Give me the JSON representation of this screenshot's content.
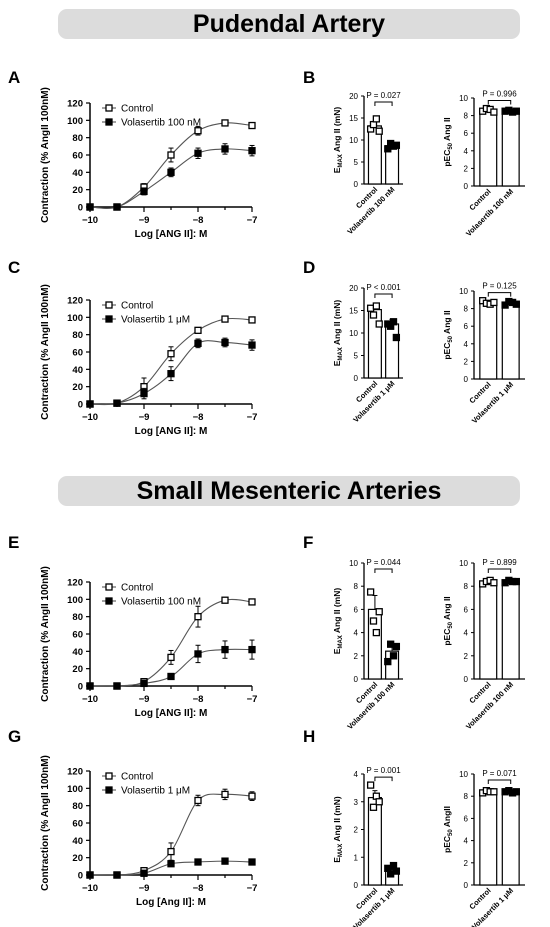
{
  "sections": [
    {
      "title": "Pudendal Artery"
    },
    {
      "title": "Small Mesenteric Arteries"
    }
  ],
  "chart_data": [
    {
      "panel": "A",
      "type": "line",
      "xlabel": "Log [ANG II]: M",
      "ylabel": "Contraction (% AngII 100nM)",
      "xlim": [
        -10,
        -7
      ],
      "ylim": [
        0,
        120
      ],
      "xticks": [
        -10,
        -9,
        -8,
        -7
      ],
      "xtick_labels": [
        "−10",
        "−9",
        "−8",
        "−7"
      ],
      "yticks": [
        0,
        20,
        40,
        60,
        80,
        100,
        120
      ],
      "x": [
        -10,
        -9.5,
        -9,
        -8.5,
        -8,
        -7.5,
        -7
      ],
      "series": [
        {
          "name": "Control",
          "marker": "open-square",
          "values": [
            0,
            0,
            23,
            60,
            88,
            97,
            94
          ],
          "errors": [
            1,
            1,
            4,
            8,
            5,
            2,
            3
          ]
        },
        {
          "name": "Volasertib 100 nM",
          "marker": "filled-square",
          "values": [
            0,
            0,
            18,
            40,
            62,
            67,
            65
          ],
          "errors": [
            1,
            1,
            4,
            5,
            6,
            6,
            6
          ]
        }
      ]
    },
    {
      "panel": "C",
      "type": "line",
      "xlabel": "Log [ANG II]: M",
      "ylabel": "Contraction (% AngII 100nM)",
      "xlim": [
        -10,
        -7
      ],
      "ylim": [
        0,
        120
      ],
      "xticks": [
        -10,
        -9,
        -8,
        -7
      ],
      "xtick_labels": [
        "−10",
        "−9",
        "−8",
        "−7"
      ],
      "yticks": [
        0,
        20,
        40,
        60,
        80,
        100,
        120
      ],
      "x": [
        -10,
        -9.5,
        -9,
        -8.5,
        -8,
        -7.5,
        -7
      ],
      "series": [
        {
          "name": "Control",
          "marker": "open-square",
          "values": [
            0,
            1,
            20,
            58,
            85,
            98,
            97
          ],
          "errors": [
            1,
            1,
            10,
            8,
            3,
            2,
            2
          ]
        },
        {
          "name": "Volasertib 1 μM",
          "marker": "filled-square",
          "values": [
            0,
            1,
            12,
            35,
            70,
            71,
            68
          ],
          "errors": [
            1,
            1,
            6,
            8,
            5,
            5,
            6
          ]
        }
      ]
    },
    {
      "panel": "E",
      "type": "line",
      "xlabel": "Log [ANG II]: M",
      "ylabel": "Contraction (% AngII 100nM)",
      "xlim": [
        -10,
        -7
      ],
      "ylim": [
        0,
        120
      ],
      "xticks": [
        -10,
        -9,
        -8,
        -7
      ],
      "xtick_labels": [
        "−10",
        "−9",
        "−8",
        "−7"
      ],
      "yticks": [
        0,
        20,
        40,
        60,
        80,
        100,
        120
      ],
      "x": [
        -10,
        -9.5,
        -9,
        -8.5,
        -8,
        -7.5,
        -7
      ],
      "series": [
        {
          "name": "Control",
          "marker": "open-square",
          "values": [
            0,
            0,
            5,
            33,
            80,
            99,
            97
          ],
          "errors": [
            1,
            1,
            3,
            8,
            12,
            2,
            2
          ]
        },
        {
          "name": "Volasertib 100 nM",
          "marker": "filled-square",
          "values": [
            0,
            0,
            3,
            11,
            37,
            42,
            42
          ],
          "errors": [
            1,
            1,
            2,
            3,
            10,
            10,
            11
          ]
        }
      ]
    },
    {
      "panel": "G",
      "type": "line",
      "xlabel": "Log [Ang II]: M",
      "ylabel": "Contraction (% AngII 100nM)",
      "xlim": [
        -10,
        -7
      ],
      "ylim": [
        0,
        120
      ],
      "xticks": [
        -10,
        -9,
        -8,
        -7
      ],
      "xtick_labels": [
        "−10",
        "−9",
        "−8",
        "−7"
      ],
      "yticks": [
        0,
        20,
        40,
        60,
        80,
        100,
        120
      ],
      "x": [
        -10,
        -9.5,
        -9,
        -8.5,
        -8,
        -7.5,
        -7
      ],
      "series": [
        {
          "name": "Control",
          "marker": "open-square",
          "values": [
            0,
            0,
            5,
            27,
            86,
            93,
            91
          ],
          "errors": [
            1,
            1,
            2,
            10,
            6,
            6,
            5
          ]
        },
        {
          "name": "Volasertib 1 μM",
          "marker": "filled-square",
          "values": [
            0,
            0,
            2,
            13,
            15,
            16,
            15
          ],
          "errors": [
            1,
            1,
            1,
            2,
            2,
            2,
            2
          ]
        }
      ]
    },
    {
      "panel": "B",
      "type": "bar",
      "ylabel": "EMAX Ang II (mN)",
      "ylabel_main": "E",
      "ylabel_sub": "MAX",
      "ylabel_rest": " Ang II (mN)",
      "ylim": [
        0,
        20
      ],
      "yticks": [
        0,
        5,
        10,
        15,
        20
      ],
      "categories": [
        "Control",
        "Volasertib 100 nM"
      ],
      "values": [
        13.2,
        8.7
      ],
      "errors": [
        1.0,
        0.6
      ],
      "points": [
        [
          12.5,
          13.5,
          14.8,
          12.0
        ],
        [
          8.0,
          9.2,
          8.6,
          8.8
        ]
      ],
      "p_value": "P = 0.027"
    },
    {
      "panel": "B",
      "type": "bar",
      "ylabel": "pEC50 Ang II",
      "ylabel_main": "pEC",
      "ylabel_sub": "50",
      "ylabel_rest": " Ang II",
      "ylim": [
        0,
        10
      ],
      "yticks": [
        0,
        2,
        4,
        6,
        8,
        10
      ],
      "categories": [
        "Control",
        "Volasertib 100 nM"
      ],
      "values": [
        8.6,
        8.5
      ],
      "errors": [
        0.2,
        0.1
      ],
      "points": [
        [
          8.5,
          8.8,
          8.7,
          8.4
        ],
        [
          8.5,
          8.6,
          8.4,
          8.5
        ]
      ],
      "p_value": "P = 0.996"
    },
    {
      "panel": "D",
      "type": "bar",
      "ylabel": "EMAX Ang II (mN)",
      "ylabel_main": "E",
      "ylabel_sub": "MAX",
      "ylabel_rest": " Ang II (mN)",
      "ylim": [
        0,
        20
      ],
      "yticks": [
        0,
        5,
        10,
        15,
        20
      ],
      "categories": [
        "Control",
        "Volasertib 1 μM"
      ],
      "values": [
        15.2,
        12.0
      ],
      "errors": [
        0.8,
        1.0
      ],
      "points": [
        [
          15.5,
          14.0,
          16.0,
          12.0
        ],
        [
          12.0,
          11.5,
          12.5,
          9.0
        ]
      ],
      "p_value": "P < 0.001"
    },
    {
      "panel": "D",
      "type": "bar",
      "ylabel": "pEC50 Ang II",
      "ylabel_main": "pEC",
      "ylabel_sub": "50",
      "ylabel_rest": " Ang II",
      "ylim": [
        0,
        10
      ],
      "yticks": [
        0,
        2,
        4,
        6,
        8,
        10
      ],
      "categories": [
        "Control",
        "Volasertib 1 μM"
      ],
      "values": [
        8.7,
        8.6
      ],
      "errors": [
        0.2,
        0.2
      ],
      "points": [
        [
          8.9,
          8.6,
          8.5,
          8.7
        ],
        [
          8.4,
          8.8,
          8.7,
          8.5
        ]
      ],
      "p_value": "P = 0.125"
    },
    {
      "panel": "F",
      "type": "bar",
      "ylabel": "EMAX Ang II (mN)",
      "ylabel_main": "E",
      "ylabel_sub": "MAX",
      "ylabel_rest": " Ang II (mN)",
      "ylim": [
        0,
        10
      ],
      "yticks": [
        0,
        2,
        4,
        6,
        8,
        10
      ],
      "categories": [
        "Control",
        "Volasertib 100 nM"
      ],
      "values": [
        6.0,
        2.4
      ],
      "errors": [
        1.2,
        0.6
      ],
      "points": [
        [
          7.5,
          5.0,
          4.0,
          5.8
        ],
        [
          1.5,
          3.0,
          2.0,
          2.8
        ]
      ],
      "p_value": "P = 0.044"
    },
    {
      "panel": "F",
      "type": "bar",
      "ylabel": "pEC50 Ang II",
      "ylabel_main": "pEC",
      "ylabel_sub": "50",
      "ylabel_rest": " Ang II",
      "ylim": [
        0,
        10
      ],
      "yticks": [
        0,
        2,
        4,
        6,
        8,
        10
      ],
      "categories": [
        "Control",
        "Volasertib 100 nM"
      ],
      "values": [
        8.3,
        8.4
      ],
      "errors": [
        0.2,
        0.1
      ],
      "points": [
        [
          8.2,
          8.4,
          8.5,
          8.3
        ],
        [
          8.3,
          8.5,
          8.4,
          8.4
        ]
      ],
      "p_value": "P = 0.899"
    },
    {
      "panel": "H",
      "type": "bar",
      "ylabel": "EMAX Ang II (mN)",
      "ylabel_main": "E",
      "ylabel_sub": "MAX",
      "ylabel_rest": " Ang II (mN)",
      "ylim": [
        0,
        4
      ],
      "yticks": [
        0,
        1,
        2,
        3,
        4
      ],
      "categories": [
        "Control",
        "Volasertib 1 μM"
      ],
      "values": [
        3.15,
        0.55
      ],
      "errors": [
        0.25,
        0.1
      ],
      "points": [
        [
          3.6,
          2.8,
          3.2,
          3.0
        ],
        [
          0.6,
          0.4,
          0.7,
          0.5
        ]
      ],
      "p_value": "P = 0.001"
    },
    {
      "panel": "H",
      "type": "bar",
      "ylabel": "pEC50 AngII",
      "ylabel_main": "pEC",
      "ylabel_sub": "50",
      "ylabel_rest": " AngII",
      "ylim": [
        0,
        10
      ],
      "yticks": [
        0,
        2,
        4,
        6,
        8,
        10
      ],
      "categories": [
        "Control",
        "Volasertib 1 μM"
      ],
      "values": [
        8.4,
        8.4
      ],
      "errors": [
        0.1,
        0.1
      ],
      "points": [
        [
          8.3,
          8.5,
          8.4,
          8.4
        ],
        [
          8.4,
          8.5,
          8.3,
          8.4
        ]
      ],
      "p_value": "P = 0.071"
    }
  ]
}
